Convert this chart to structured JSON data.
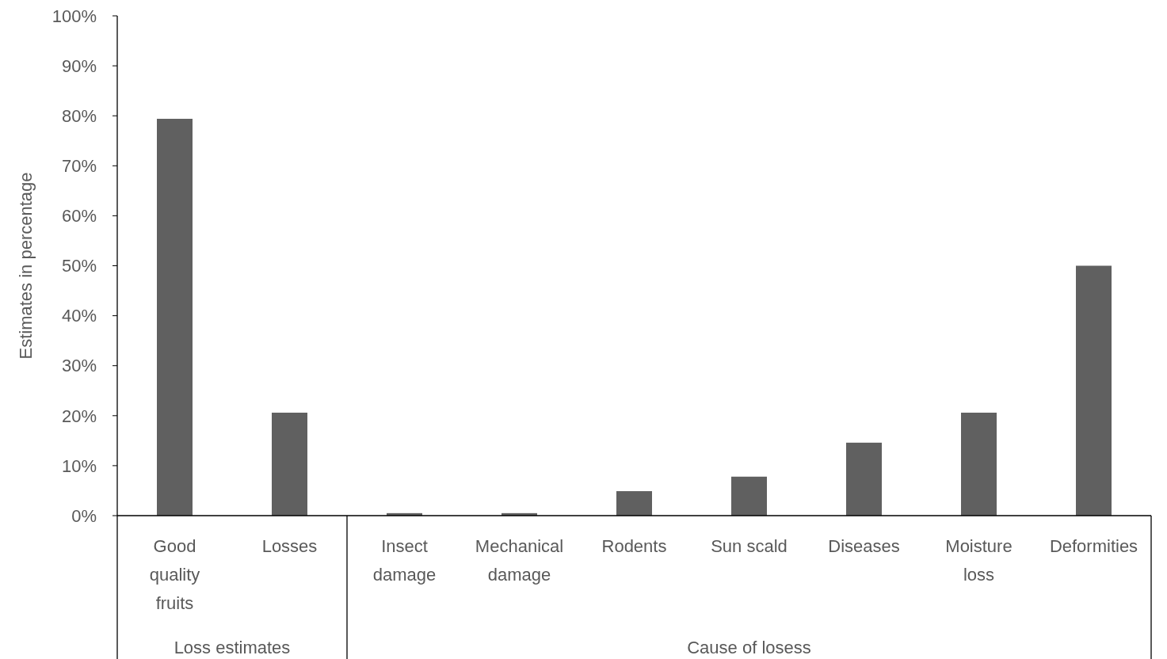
{
  "chart_data": {
    "type": "bar",
    "ylabel": "Estimates in percentage",
    "categories": [
      "Good quality fruits",
      "Losses",
      "Insect damage",
      "Mechanical damage",
      "Rodents",
      "Sun scald",
      "Diseases",
      "Moisture loss",
      "Deformities"
    ],
    "values": [
      79.4,
      20.6,
      0.5,
      0.5,
      4.9,
      7.8,
      14.6,
      20.6,
      50
    ],
    "color": "#606060",
    "ylim": [
      0,
      100
    ],
    "yticks": [
      {
        "value": 0,
        "label": "0%"
      },
      {
        "value": 10,
        "label": "10%"
      },
      {
        "value": 20,
        "label": "20%"
      },
      {
        "value": 30,
        "label": "30%"
      },
      {
        "value": 40,
        "label": "40%"
      },
      {
        "value": 50,
        "label": "50%"
      },
      {
        "value": 60,
        "label": "60%"
      },
      {
        "value": 70,
        "label": "70%"
      },
      {
        "value": 80,
        "label": "80%"
      },
      {
        "value": 90,
        "label": "90%"
      },
      {
        "value": 100,
        "label": "100%"
      }
    ],
    "annotations": [
      "Loss estimates",
      "Cause of losess"
    ],
    "grid": false
  }
}
